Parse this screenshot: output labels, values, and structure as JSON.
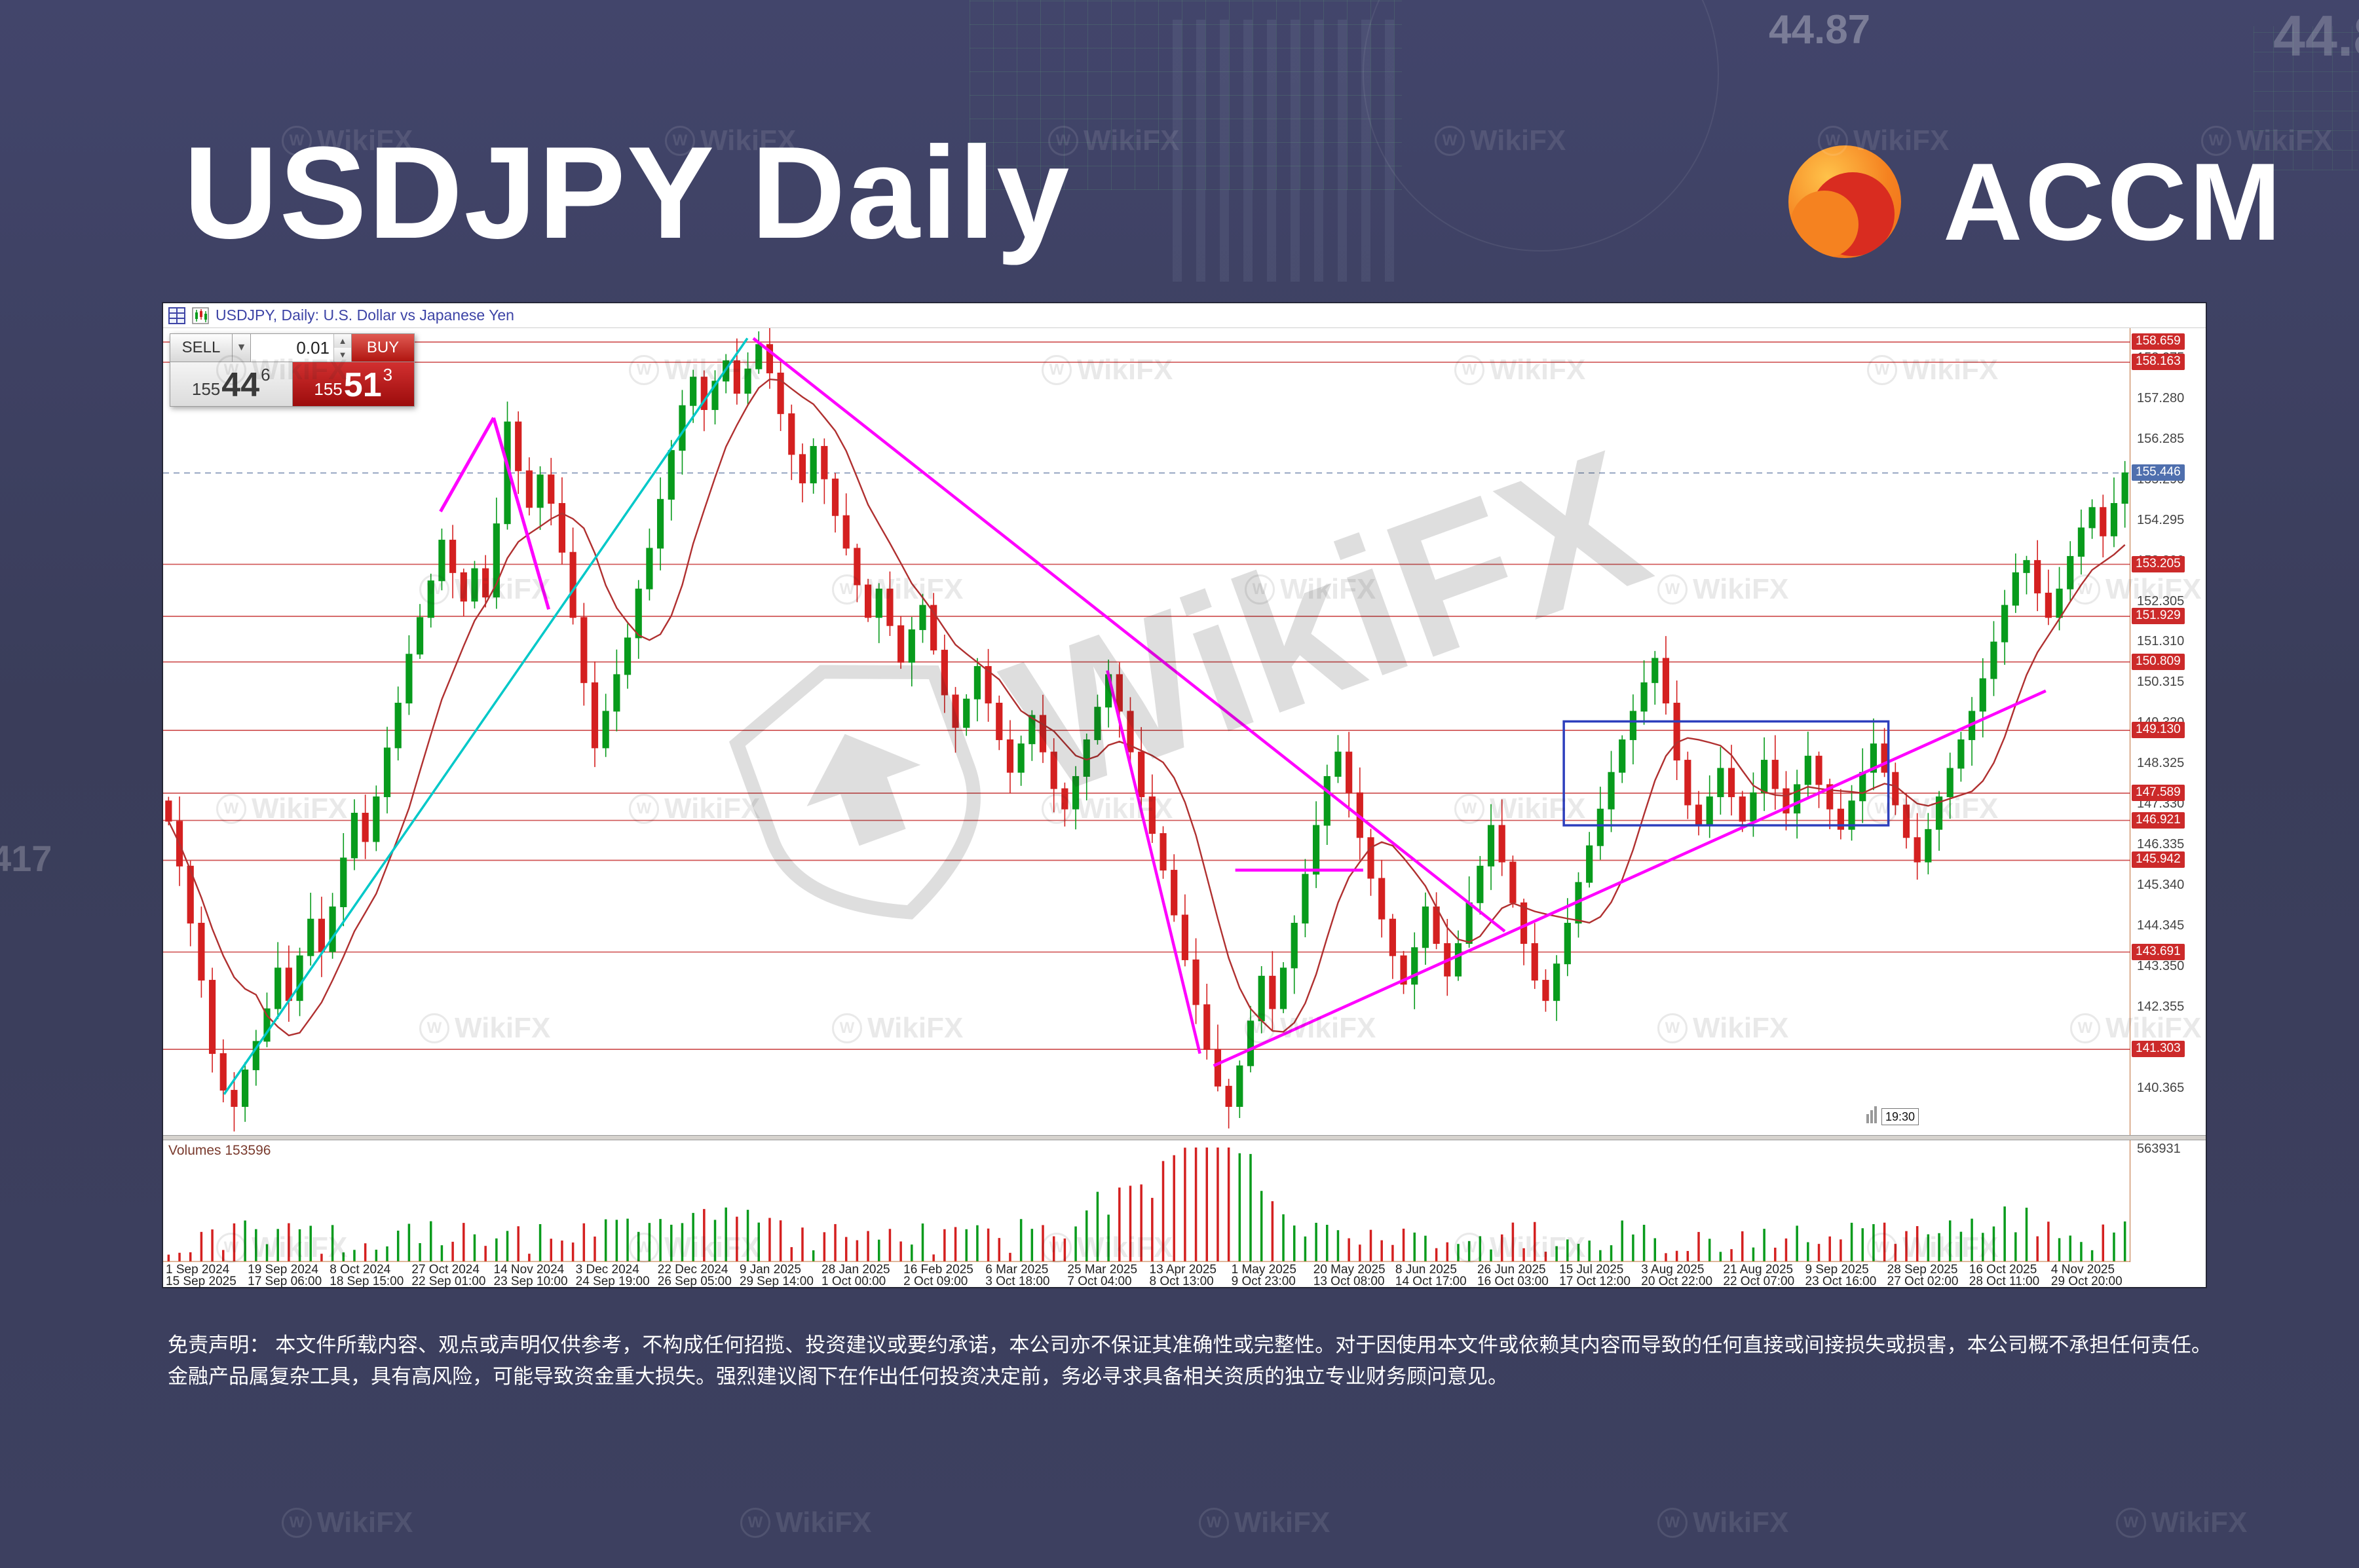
{
  "page": {
    "title": "USDJPY Daily",
    "brand": "ACCM"
  },
  "decor": {
    "corner_number": "44.87",
    "corner_number_2": "44.8",
    "left_number": "417"
  },
  "watermark": {
    "label": "WikiFX",
    "initial": "W"
  },
  "terminal": {
    "header": {
      "symbol_title": "USDJPY, Daily: U.S. Dollar vs Japanese Yen"
    },
    "trade_widget": {
      "sell_label": "SELL",
      "buy_label": "BUY",
      "lot_value": "0.01",
      "bid_small": "155",
      "bid_big": "44",
      "bid_sup": "6",
      "ask_small": "155",
      "ask_big": "51",
      "ask_sup": "3"
    },
    "time_marker": "19:30",
    "volume_pane": {
      "label": "Volumes 153596",
      "axis_top": "563931"
    },
    "price_axis": {
      "ticks": [
        "158.275",
        "157.280",
        "156.285",
        "155.290",
        "154.295",
        "153.300",
        "152.305",
        "151.310",
        "150.315",
        "149.320",
        "148.325",
        "147.330",
        "146.335",
        "145.340",
        "144.345",
        "143.350",
        "142.355",
        "141.360",
        "140.365"
      ],
      "tags": [
        "158.659",
        "158.163",
        "153.205",
        "151.929",
        "150.809",
        "149.130",
        "147.589",
        "146.921",
        "145.942",
        "143.691",
        "141.303"
      ],
      "current": "155.446"
    },
    "date_axis_row1": [
      "1 Sep 2024",
      "19 Sep 2024",
      "8 Oct 2024",
      "27 Oct 2024",
      "14 Nov 2024",
      "3 Dec 2024",
      "22 Dec 2024",
      "9 Jan 2025",
      "28 Jan 2025",
      "16 Feb 2025",
      "6 Mar 2025",
      "25 Mar 2025",
      "13 Apr 2025",
      "1 May 2025",
      "20 May 2025",
      "8 Jun 2025",
      "26 Jun 2025",
      "15 Jul 2025",
      "3 Aug 2025",
      "21 Aug 2025",
      "9 Sep 2025",
      "28 Sep 2025",
      "16 Oct 2025",
      "4 Nov 2025"
    ],
    "date_axis_row2": [
      "15 Sep 2025",
      "17 Sep 06:00",
      "18 Sep 15:00",
      "22 Sep 01:00",
      "23 Sep 10:00",
      "24 Sep 19:00",
      "26 Sep 05:00",
      "29 Sep 14:00",
      "1 Oct 00:00",
      "2 Oct 09:00",
      "3 Oct 18:00",
      "7 Oct 04:00",
      "8 Oct 13:00",
      "9 Oct 23:00",
      "13 Oct 08:00",
      "14 Oct 17:00",
      "16 Oct 03:00",
      "17 Oct 12:00",
      "20 Oct 22:00",
      "22 Oct 07:00",
      "23 Oct 16:00",
      "27 Oct 02:00",
      "28 Oct 11:00",
      "29 Oct 20:00"
    ]
  },
  "chart_data": {
    "type": "candlestick",
    "symbol": "USDJPY",
    "timeframe": "Daily",
    "title": "USDJPY, Daily: U.S. Dollar vs Japanese Yen",
    "x_range": [
      "1 Sep 2024",
      "7 Nov 2025"
    ],
    "price_range": [
      139.2,
      159.0
    ],
    "current_price": 155.446,
    "bid": 155.446,
    "ask": 155.513,
    "closes": [
      146.9,
      145.8,
      144.4,
      143.0,
      141.2,
      140.3,
      139.9,
      140.8,
      141.5,
      142.3,
      143.3,
      142.5,
      143.6,
      144.5,
      143.7,
      144.8,
      146.0,
      147.1,
      146.4,
      147.5,
      148.7,
      149.8,
      151.0,
      151.9,
      152.8,
      153.8,
      153.0,
      152.3,
      153.1,
      152.4,
      154.2,
      156.7,
      155.5,
      154.6,
      155.4,
      154.7,
      153.5,
      151.9,
      150.3,
      148.7,
      149.6,
      150.5,
      151.4,
      152.6,
      153.6,
      154.8,
      156.0,
      157.1,
      157.8,
      157.0,
      157.7,
      158.2,
      157.4,
      158.0,
      158.6,
      157.9,
      156.9,
      155.9,
      155.2,
      156.1,
      155.3,
      154.4,
      153.6,
      152.7,
      151.9,
      152.6,
      151.7,
      150.8,
      151.6,
      152.2,
      151.1,
      150.0,
      149.2,
      149.9,
      150.7,
      149.8,
      148.9,
      148.1,
      148.8,
      149.5,
      148.6,
      147.7,
      147.2,
      148.0,
      148.9,
      149.7,
      150.5,
      149.6,
      148.6,
      147.5,
      146.6,
      145.7,
      144.6,
      143.5,
      142.4,
      141.3,
      140.4,
      139.9,
      140.9,
      142.0,
      143.1,
      142.3,
      143.3,
      144.4,
      145.6,
      146.8,
      148.0,
      148.6,
      147.6,
      146.5,
      145.5,
      144.5,
      143.6,
      142.9,
      143.8,
      144.8,
      143.9,
      143.1,
      143.9,
      144.9,
      145.8,
      146.8,
      145.9,
      144.9,
      143.9,
      143.0,
      142.5,
      143.4,
      144.4,
      145.4,
      146.3,
      147.2,
      148.1,
      148.9,
      149.6,
      150.3,
      150.9,
      149.8,
      148.4,
      147.3,
      146.8,
      147.5,
      148.2,
      147.5,
      146.9,
      147.6,
      148.4,
      147.7,
      147.1,
      147.8,
      148.5,
      147.8,
      147.2,
      146.7,
      147.4,
      148.1,
      148.8,
      148.1,
      147.3,
      146.5,
      145.9,
      146.7,
      147.5,
      148.2,
      148.9,
      149.6,
      150.4,
      151.3,
      152.2,
      153.0,
      153.3,
      152.5,
      151.9,
      152.6,
      153.4,
      154.1,
      154.6,
      153.9,
      154.7,
      155.45
    ],
    "sr_levels": [
      158.659,
      158.163,
      153.205,
      151.929,
      150.809,
      149.13,
      147.589,
      146.921,
      145.942,
      143.691,
      141.303
    ],
    "overlays": {
      "cyan_trendline": {
        "from": [
          0.031,
          140.2
        ],
        "to": [
          0.297,
          158.75
        ]
      },
      "magenta_downtrend_main": {
        "from": [
          0.3,
          158.75
        ],
        "to": [
          0.682,
          144.2
        ]
      },
      "magenta_downtrend_2": {
        "from": [
          0.48,
          150.6
        ],
        "to": [
          0.527,
          141.2
        ]
      },
      "magenta_uptrend": {
        "from": [
          0.534,
          140.9
        ],
        "to": [
          0.957,
          150.1
        ]
      },
      "magenta_horizontal": {
        "from": [
          0.545,
          145.7
        ],
        "to": [
          0.61,
          145.7
        ]
      },
      "magenta_zigzag": [
        [
          0.141,
          154.5
        ],
        [
          0.168,
          156.8
        ],
        [
          0.196,
          152.1
        ]
      ],
      "consolidation_box": {
        "x1": 0.712,
        "x2": 0.877,
        "p1": 149.35,
        "p2": 146.8
      }
    },
    "colors": {
      "up": "#089b1c",
      "down": "#d42020",
      "ma": "#b03030",
      "sr": "#cc4444",
      "cyan": "#00c8c8",
      "magenta": "#ff00ff",
      "box": "#2d3fbd"
    },
    "volume_label_value": 153596,
    "volume_axis_max": 563931
  },
  "disclaimer": "免责声明： 本文件所载内容、观点或声明仅供参考，不构成任何招揽、投资建议或要约承诺，本公司亦不保证其准确性或完整性。对于因使用本文件或依赖其内容而导致的任何直接或间接损失或损害，本公司概不承担任何责任。金融产品属复杂工具，具有高风险，可能导致资金重大损失。强烈建议阁下在作出任何投资决定前，务必寻求具备相关资质的独立专业财务顾问意见。"
}
